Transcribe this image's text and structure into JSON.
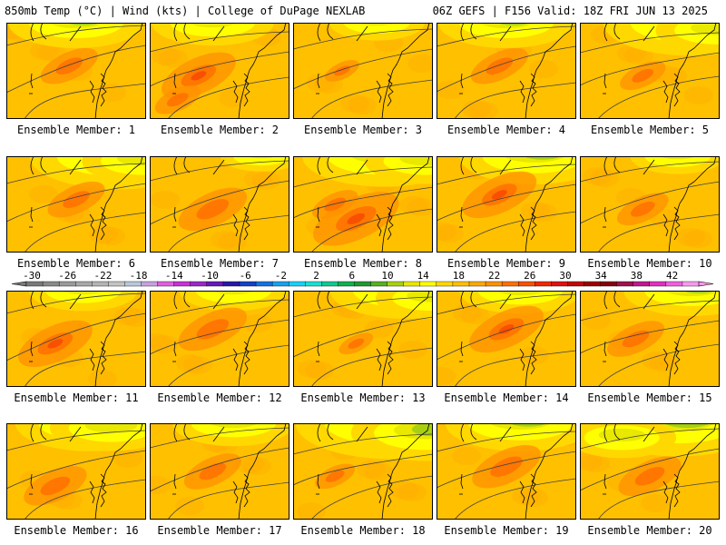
{
  "header": {
    "left": "850mb Temp (°C) | Wind (kts) | College of DuPage NEXLAB",
    "right": "06Z GEFS | F156 Valid: 18Z FRI JUN 13 2025"
  },
  "panels": [
    {
      "label": "Ensemble Member: 1",
      "warm": [
        [
          0.45,
          0.45,
          1.0
        ]
      ],
      "cool": [
        [
          0.5,
          0.0,
          1.0
        ]
      ]
    },
    {
      "label": "Ensemble Member: 2",
      "warm": [
        [
          0.35,
          0.55,
          1.3
        ],
        [
          0.2,
          0.8,
          0.8
        ]
      ],
      "cool": [
        [
          0.45,
          0.0,
          0.9
        ]
      ]
    },
    {
      "label": "Ensemble Member: 3",
      "warm": [
        [
          0.35,
          0.5,
          0.6
        ]
      ],
      "cool": [
        [
          0.6,
          0.0,
          0.7
        ]
      ]
    },
    {
      "label": "Ensemble Member: 4",
      "warm": [
        [
          0.45,
          0.45,
          1.0
        ]
      ],
      "cool": [
        [
          0.5,
          0.0,
          1.0
        ]
      ]
    },
    {
      "label": "Ensemble Member: 5",
      "warm": [
        [
          0.45,
          0.55,
          0.8
        ]
      ],
      "cool": [
        [
          0.8,
          0.0,
          1.3
        ],
        [
          0.98,
          0.08,
          0.9
        ]
      ]
    },
    {
      "label": "Ensemble Member: 6",
      "warm": [
        [
          0.5,
          0.45,
          1.0
        ]
      ],
      "cool": [
        [
          0.8,
          0.0,
          1.3
        ],
        [
          0.98,
          0.05,
          0.9
        ]
      ]
    },
    {
      "label": "Ensemble Member: 7",
      "warm": [
        [
          0.45,
          0.55,
          1.2
        ]
      ],
      "cool": [
        [
          0.8,
          0.0,
          0.6
        ]
      ]
    },
    {
      "label": "Ensemble Member: 8",
      "warm": [
        [
          0.45,
          0.65,
          1.5
        ],
        [
          0.3,
          0.5,
          0.8
        ]
      ],
      "cool": [
        [
          0.65,
          0.0,
          1.2
        ],
        [
          0.95,
          0.05,
          0.9
        ]
      ]
    },
    {
      "label": "Ensemble Member: 9",
      "warm": [
        [
          0.45,
          0.4,
          1.3
        ]
      ],
      "cool": [
        [
          0.7,
          0.0,
          1.1
        ]
      ]
    },
    {
      "label": "Ensemble Member: 10",
      "warm": [
        [
          0.45,
          0.55,
          0.9
        ]
      ],
      "cool": [
        [
          0.7,
          0.0,
          0.7
        ]
      ]
    },
    {
      "label": "Ensemble Member: 11",
      "warm": [
        [
          0.35,
          0.55,
          1.3
        ]
      ],
      "cool": [
        [
          0.55,
          0.0,
          0.8
        ]
      ]
    },
    {
      "label": "Ensemble Member: 12",
      "warm": [
        [
          0.45,
          0.4,
          1.2
        ]
      ],
      "cool": [
        [
          0.6,
          0.0,
          0.8
        ]
      ]
    },
    {
      "label": "Ensemble Member: 13",
      "warm": [
        [
          0.45,
          0.55,
          0.6
        ]
      ],
      "cool": [
        [
          0.8,
          0.0,
          1.1
        ],
        [
          0.98,
          0.08,
          0.8
        ]
      ]
    },
    {
      "label": "Ensemble Member: 14",
      "warm": [
        [
          0.5,
          0.4,
          1.3
        ]
      ],
      "cool": [
        [
          0.6,
          0.0,
          0.9
        ]
      ]
    },
    {
      "label": "Ensemble Member: 15",
      "warm": [
        [
          0.4,
          0.5,
          1.0
        ]
      ],
      "cool": [
        [
          0.8,
          0.0,
          1.0
        ]
      ]
    },
    {
      "label": "Ensemble Member: 16",
      "warm": [
        [
          0.35,
          0.65,
          1.1
        ]
      ],
      "cool": [
        [
          0.6,
          0.0,
          1.1
        ],
        [
          0.75,
          0.05,
          0.9
        ]
      ]
    },
    {
      "label": "Ensemble Member: 17",
      "warm": [
        [
          0.45,
          0.5,
          1.0
        ]
      ],
      "cool": [
        [
          0.6,
          0.0,
          0.9
        ]
      ]
    },
    {
      "label": "Ensemble Member: 18",
      "warm": [
        [
          0.3,
          0.55,
          0.7
        ]
      ],
      "cool": [
        [
          0.7,
          0.0,
          1.4
        ],
        [
          0.95,
          0.1,
          1.1
        ]
      ]
    },
    {
      "label": "Ensemble Member: 19",
      "warm": [
        [
          0.5,
          0.45,
          1.2
        ]
      ],
      "cool": [
        [
          0.6,
          0.0,
          1.1
        ]
      ]
    },
    {
      "label": "Ensemble Member: 20",
      "warm": [
        [
          0.5,
          0.55,
          1.1
        ]
      ],
      "cool": [
        [
          0.7,
          0.0,
          1.3
        ],
        [
          0.3,
          0.15,
          0.8
        ]
      ]
    }
  ],
  "colorbar": {
    "tick_labels": [
      "-30",
      "-26",
      "-22",
      "-18",
      "-14",
      "-10",
      "-6",
      "-2",
      "2",
      "6",
      "10",
      "14",
      "18",
      "22",
      "26",
      "30",
      "34",
      "38",
      "42"
    ],
    "colors": [
      "#7a7a7a",
      "#8a8a8a",
      "#9a9a9a",
      "#a8a8a8",
      "#b4b4b4",
      "#c4c4c4",
      "#b8c8dc",
      "#c8a0e0",
      "#e060e0",
      "#c830d8",
      "#9a28c8",
      "#6818b8",
      "#2818a8",
      "#1840c8",
      "#1870e0",
      "#18a0f0",
      "#18d0f8",
      "#18e0d0",
      "#10c890",
      "#10b050",
      "#209830",
      "#58b020",
      "#a8d010",
      "#e8e800",
      "#ffff00",
      "#ffd800",
      "#ffc000",
      "#ffa800",
      "#ff9000",
      "#ff7000",
      "#f85000",
      "#f02800",
      "#e01010",
      "#c00808",
      "#a00000",
      "#880010",
      "#a01050",
      "#c01890",
      "#e030c0",
      "#f060e0",
      "#f898f0"
    ]
  }
}
